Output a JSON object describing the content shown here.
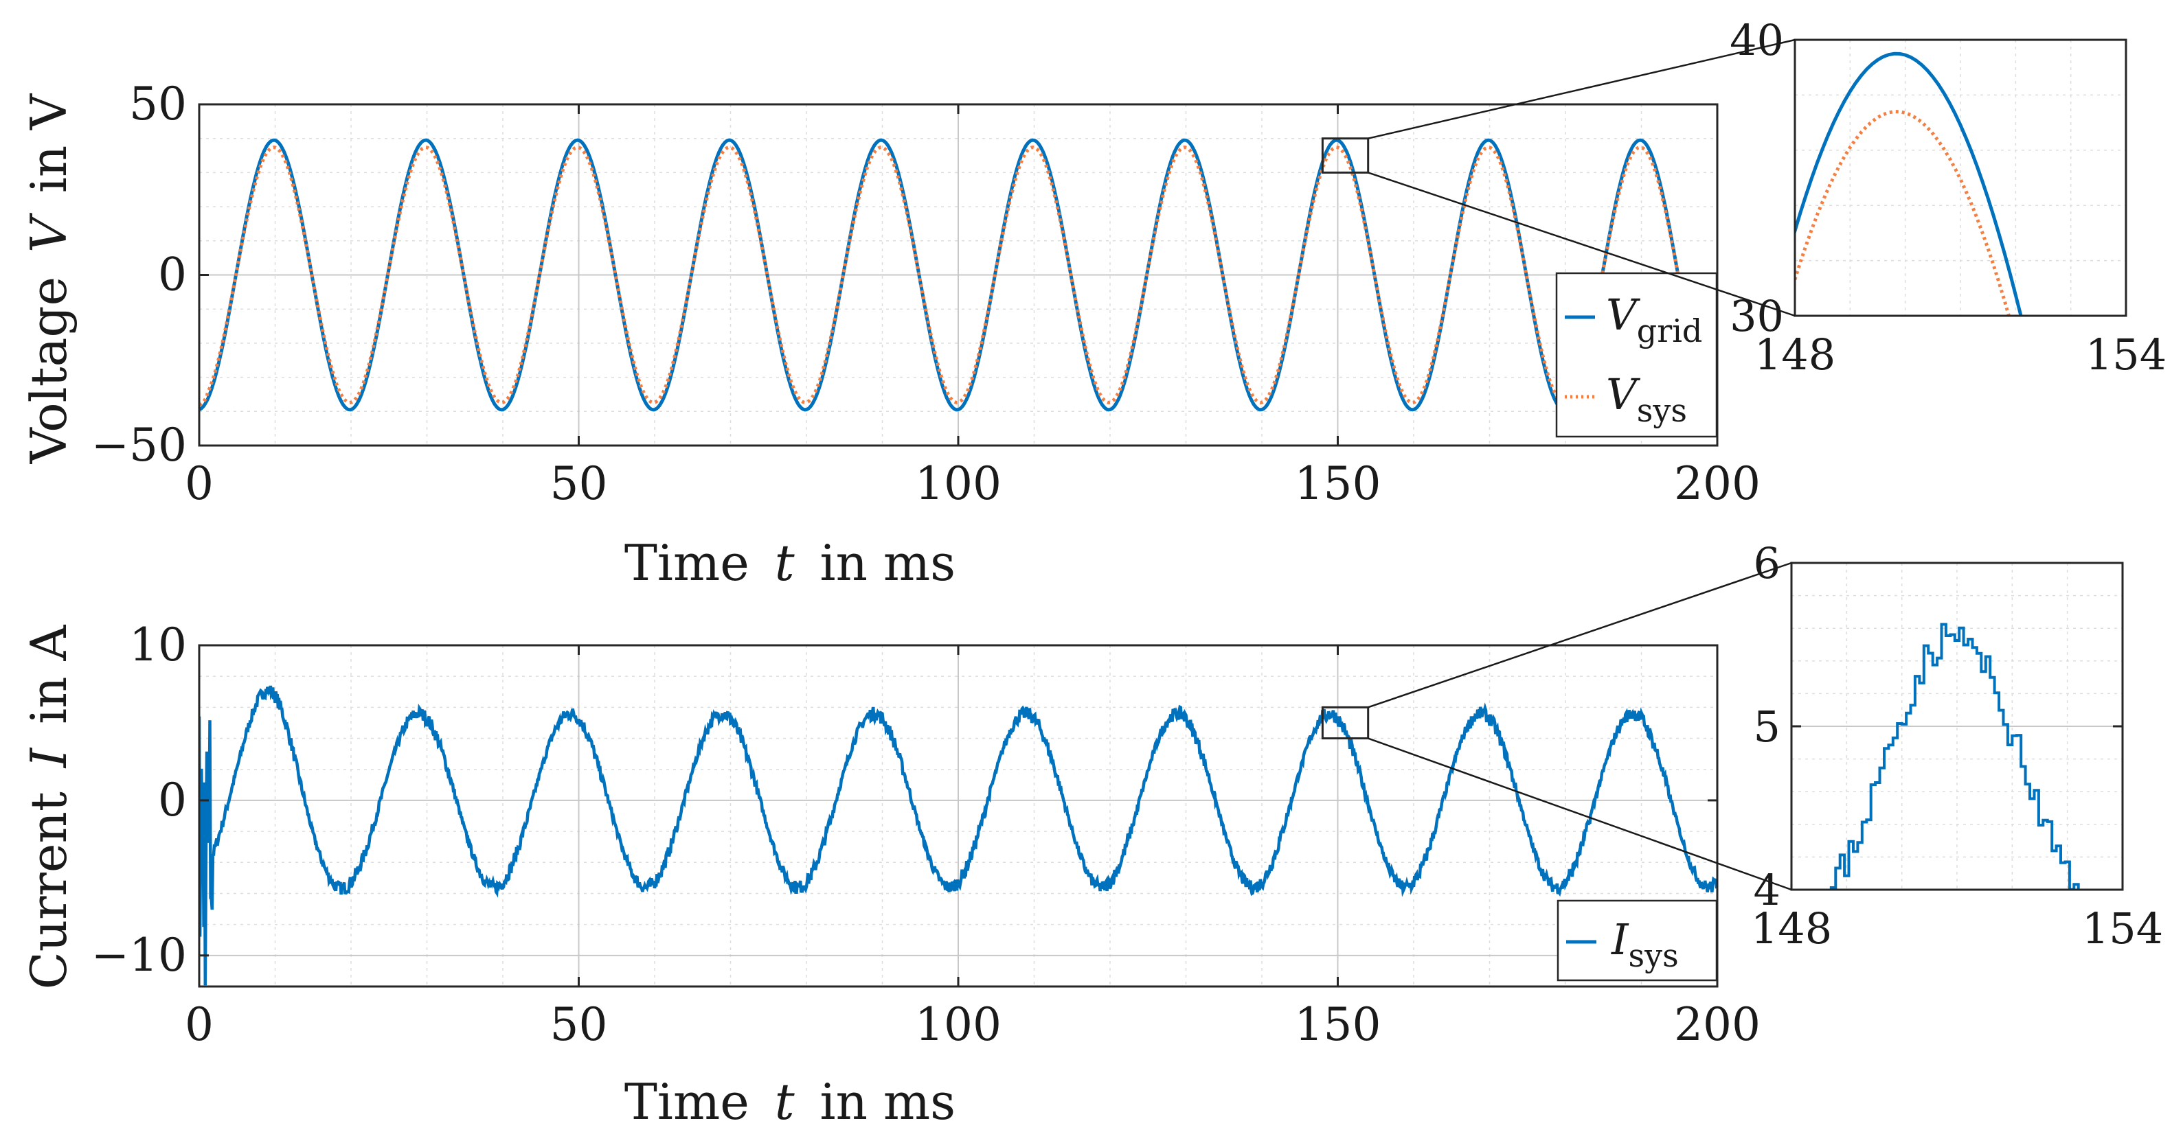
{
  "chart_data": [
    {
      "id": "voltage",
      "type": "line",
      "xlabel": {
        "prefix": "Time ",
        "var": "t",
        "suffix": " in ms"
      },
      "ylabel": {
        "prefix": "Voltage ",
        "var": "V",
        "suffix": " in V"
      },
      "xlim": [
        0,
        200
      ],
      "ylim": [
        -50,
        50
      ],
      "xticks": [
        0,
        50,
        100,
        150,
        200
      ],
      "yticks": [
        -50,
        0,
        50
      ],
      "ytick_labels": [
        "−50",
        "0",
        "50"
      ],
      "grid": true,
      "legend_position": "bottom-right",
      "frequency_hz": 50,
      "series": [
        {
          "name": "V",
          "sub": "grid",
          "amplitude": 39.5,
          "phase_deg": 0,
          "color": "#0072BD",
          "style": "solid"
        },
        {
          "name": "V",
          "sub": "sys",
          "amplitude": 37.4,
          "phase_deg": 0,
          "color": "#F47F42",
          "style": "dotted"
        }
      ],
      "zoom_box": {
        "xlim": [
          148,
          154
        ],
        "ylim": [
          30,
          40
        ]
      },
      "inset": {
        "xlim": [
          148,
          154
        ],
        "ylim": [
          30,
          40
        ],
        "xticks": [
          148,
          154
        ],
        "yticks": [
          30,
          40
        ]
      }
    },
    {
      "id": "current",
      "type": "line",
      "xlabel": {
        "prefix": "Time ",
        "var": "t",
        "suffix": " in ms"
      },
      "ylabel": {
        "prefix": "Current ",
        "var": "I",
        "suffix": " in A"
      },
      "xlim": [
        0,
        200
      ],
      "ylim": [
        -12,
        10
      ],
      "xticks": [
        0,
        50,
        100,
        150,
        200
      ],
      "yticks": [
        -10,
        0,
        10
      ],
      "ytick_labels": [
        "−10",
        "0",
        "10"
      ],
      "grid": true,
      "legend_position": "bottom-right",
      "frequency_hz": 50,
      "series": [
        {
          "name": "I",
          "sub": "sys",
          "amplitude": 5.6,
          "first_peak": 7.2,
          "phase_deg": 0,
          "color": "#0072BD",
          "style": "solid"
        }
      ],
      "zoom_box": {
        "xlim": [
          148,
          154
        ],
        "ylim": [
          4,
          6
        ]
      },
      "inset": {
        "xlim": [
          148,
          154
        ],
        "ylim": [
          4,
          6
        ],
        "xticks": [
          148,
          154
        ],
        "yticks": [
          4,
          5,
          6
        ]
      }
    }
  ]
}
